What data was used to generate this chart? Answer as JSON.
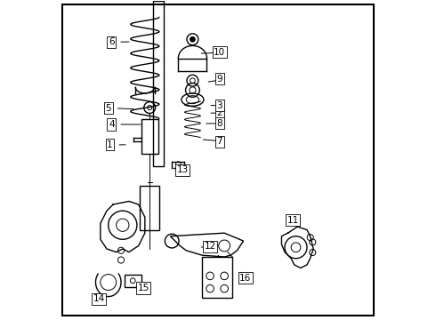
{
  "background_color": "#ffffff",
  "border_color": "#000000",
  "figure_width": 4.9,
  "figure_height": 3.6,
  "dpi": 100,
  "label_fontsize": 7.5,
  "line_color": "#000000",
  "text_color": "#000000"
}
